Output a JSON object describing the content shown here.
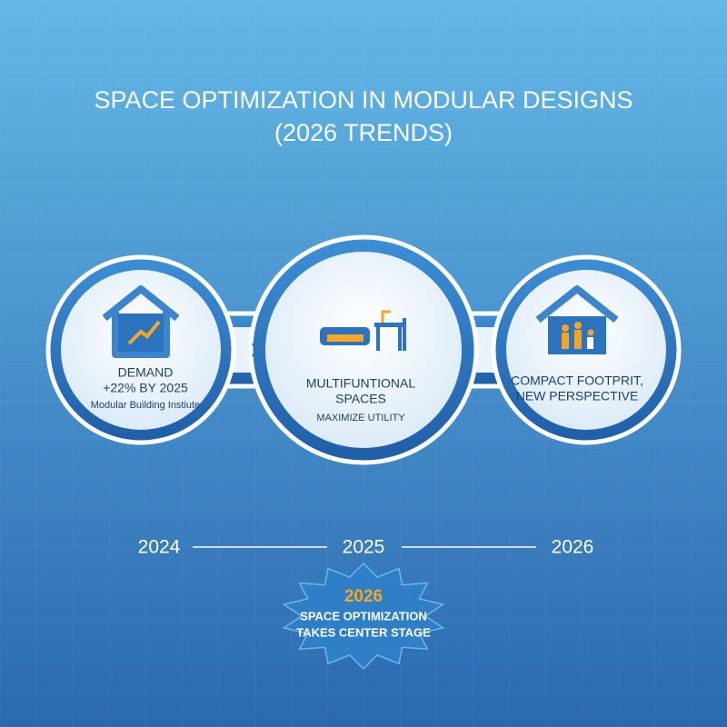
{
  "header": {
    "title": "SPACE OPTIMIZATION IN MODULAR DESIGNS",
    "subtitle": "(2026 TRENDS)"
  },
  "stages": [
    {
      "lines": [
        "DEMAND",
        "+22% BY 2025"
      ],
      "note": "Modular Building Instiute"
    },
    {
      "lines": [
        "MULTIFUNTIONAL",
        "SPACES"
      ],
      "note": "MAXIMIZE UTILITY"
    },
    {
      "lines": [
        "COMPACT FOOTPRIT,",
        "NEW PERSPECTIVE"
      ]
    }
  ],
  "timeline": [
    "2024",
    "2025",
    "2026"
  ],
  "callout": {
    "year": "2026",
    "lines": [
      "SPACE OPTIMIZATION",
      "TAKES CENTER STAGE"
    ]
  }
}
